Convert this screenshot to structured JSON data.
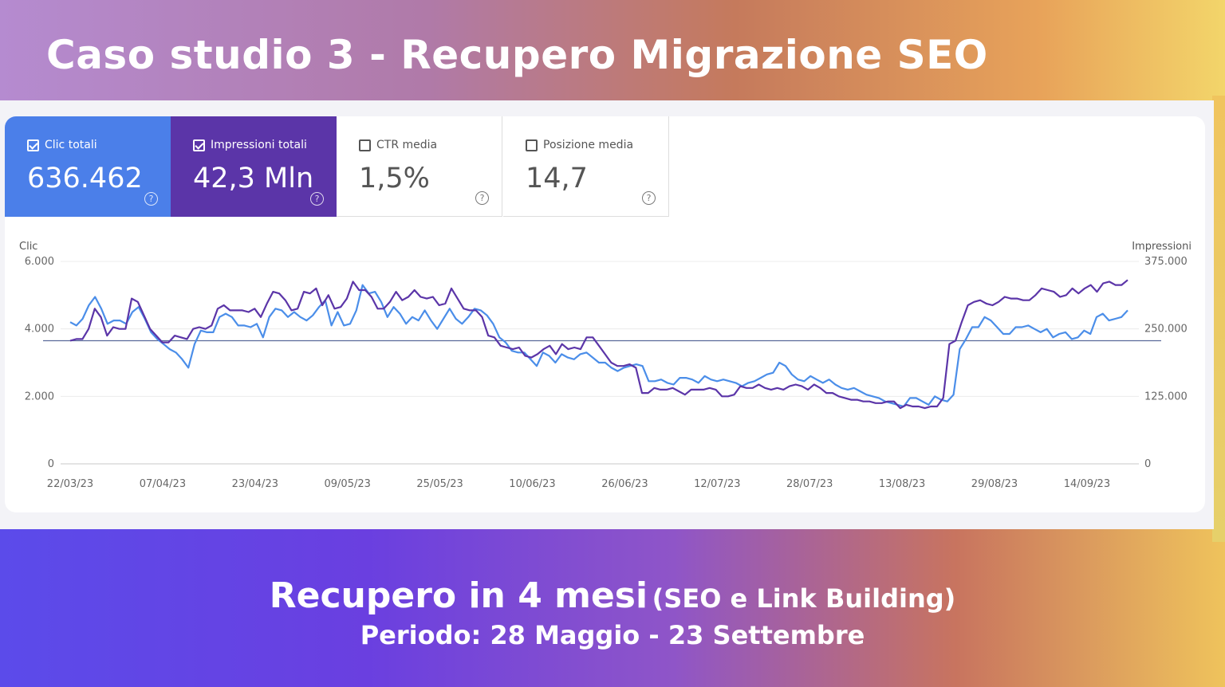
{
  "title": "Caso studio 3 - Recupero Migrazione SEO",
  "metrics": [
    {
      "label": "Clic totali",
      "value": "636.462",
      "checked": true
    },
    {
      "label": "Impressioni totali",
      "value": "42,3 Mln",
      "checked": true
    },
    {
      "label": "CTR media",
      "value": "1,5%",
      "checked": false
    },
    {
      "label": "Posizione media",
      "value": "14,7",
      "checked": false
    }
  ],
  "help_glyph": "?",
  "footer": {
    "headline": "Recupero in 4 mesi",
    "headline_note": "(SEO e Link Building)",
    "period": "Periodo: 28 Maggio - 23 Settembre"
  },
  "colors": {
    "clicks": "#4b8ee9",
    "impressions": "#5b35a8"
  },
  "chart_data": {
    "type": "line",
    "ylabel_left": "Clic",
    "ylabel_right": "Impressioni",
    "left_ticks": [
      "0",
      "2.000",
      "4.000",
      "6.000"
    ],
    "right_ticks": [
      "0",
      "125.000",
      "250.000",
      "375.000"
    ],
    "ylim_left": [
      0,
      6000
    ],
    "ylim_right": [
      0,
      375000
    ],
    "x_tick_labels": [
      "22/03/23",
      "07/04/23",
      "23/04/23",
      "09/05/23",
      "25/05/23",
      "10/06/23",
      "26/06/23",
      "12/07/23",
      "28/07/23",
      "13/08/23",
      "29/08/23",
      "14/09/23"
    ],
    "x_start": "22/03/23",
    "x_end": "23/09/23",
    "reference_line": {
      "axis": "left",
      "value": 3650
    },
    "series": [
      {
        "name": "Clic",
        "axis": "left",
        "values": [
          4200,
          4100,
          4300,
          4700,
          4950,
          4600,
          4150,
          4250,
          4250,
          4150,
          4500,
          4650,
          4300,
          3900,
          3700,
          3550,
          3400,
          3300,
          3100,
          2850,
          3550,
          3950,
          3900,
          3900,
          4350,
          4450,
          4350,
          4100,
          4100,
          4050,
          4150,
          3750,
          4350,
          4600,
          4550,
          4350,
          4500,
          4350,
          4250,
          4400,
          4650,
          4850,
          4100,
          4500,
          4100,
          4150,
          4550,
          5300,
          5050,
          5100,
          4800,
          4350,
          4650,
          4450,
          4150,
          4350,
          4250,
          4550,
          4250,
          4000,
          4300,
          4600,
          4300,
          4150,
          4350,
          4600,
          4550,
          4400,
          4150,
          3750,
          3600,
          3350,
          3300,
          3300,
          3100,
          2900,
          3300,
          3200,
          3000,
          3250,
          3150,
          3100,
          3250,
          3300,
          3150,
          3000,
          3000,
          2850,
          2750,
          2850,
          2900,
          2950,
          2900,
          2450,
          2450,
          2500,
          2400,
          2350,
          2550,
          2550,
          2500,
          2400,
          2600,
          2500,
          2450,
          2500,
          2450,
          2400,
          2300,
          2400,
          2450,
          2550,
          2650,
          2700,
          3000,
          2900,
          2650,
          2500,
          2450,
          2600,
          2500,
          2400,
          2500,
          2350,
          2250,
          2200,
          2250,
          2150,
          2050,
          2000,
          1950,
          1850,
          1800,
          1750,
          1700,
          1950,
          1950,
          1850,
          1750,
          2000,
          1900,
          1850,
          2050,
          3400,
          3700,
          4050,
          4050,
          4350,
          4250,
          4050,
          3850,
          3850,
          4050,
          4050,
          4100,
          4000,
          3900,
          4000,
          3750,
          3850,
          3900,
          3700,
          3750,
          3950,
          3850,
          4350,
          4450,
          4250,
          4300,
          4350,
          4550
        ],
        "color": "#4b8ee9"
      },
      {
        "name": "Impressioni",
        "axis": "left",
        "values": [
          3650,
          3700,
          3700,
          4000,
          4600,
          4350,
          3800,
          4050,
          4000,
          4000,
          4900,
          4800,
          4400,
          4000,
          3800,
          3600,
          3600,
          3800,
          3750,
          3700,
          4000,
          4050,
          4000,
          4100,
          4600,
          4700,
          4550,
          4550,
          4550,
          4500,
          4600,
          4350,
          4750,
          5100,
          5050,
          4850,
          4550,
          4600,
          5100,
          5050,
          5200,
          4700,
          5000,
          4600,
          4650,
          4900,
          5400,
          5150,
          5150,
          4950,
          4600,
          4600,
          4800,
          5100,
          4850,
          4950,
          5150,
          4950,
          4900,
          4950,
          4700,
          4750,
          5200,
          4900,
          4600,
          4550,
          4550,
          4350,
          3800,
          3750,
          3500,
          3450,
          3400,
          3450,
          3200,
          3150,
          3250,
          3400,
          3500,
          3250,
          3550,
          3400,
          3450,
          3400,
          3750,
          3750,
          3500,
          3250,
          3000,
          2900,
          2900,
          2950,
          2850,
          2100,
          2100,
          2250,
          2200,
          2200,
          2250,
          2150,
          2050,
          2200,
          2200,
          2200,
          2250,
          2200,
          2000,
          2000,
          2050,
          2300,
          2250,
          2250,
          2350,
          2250,
          2200,
          2250,
          2200,
          2300,
          2350,
          2300,
          2200,
          2350,
          2250,
          2100,
          2100,
          2000,
          1950,
          1900,
          1900,
          1850,
          1850,
          1800,
          1800,
          1850,
          1850,
          1650,
          1750,
          1700,
          1700,
          1650,
          1700,
          1700,
          1950,
          3550,
          3650,
          4200,
          4700,
          4800,
          4850,
          4750,
          4700,
          4800,
          4950,
          4900,
          4900,
          4850,
          4850,
          5000,
          5200,
          5150,
          5100,
          4950,
          5000,
          5200,
          5050,
          5200,
          5300,
          5100,
          5350,
          5400,
          5300,
          5300,
          5450
        ],
        "color": "#5b35a8"
      }
    ]
  }
}
